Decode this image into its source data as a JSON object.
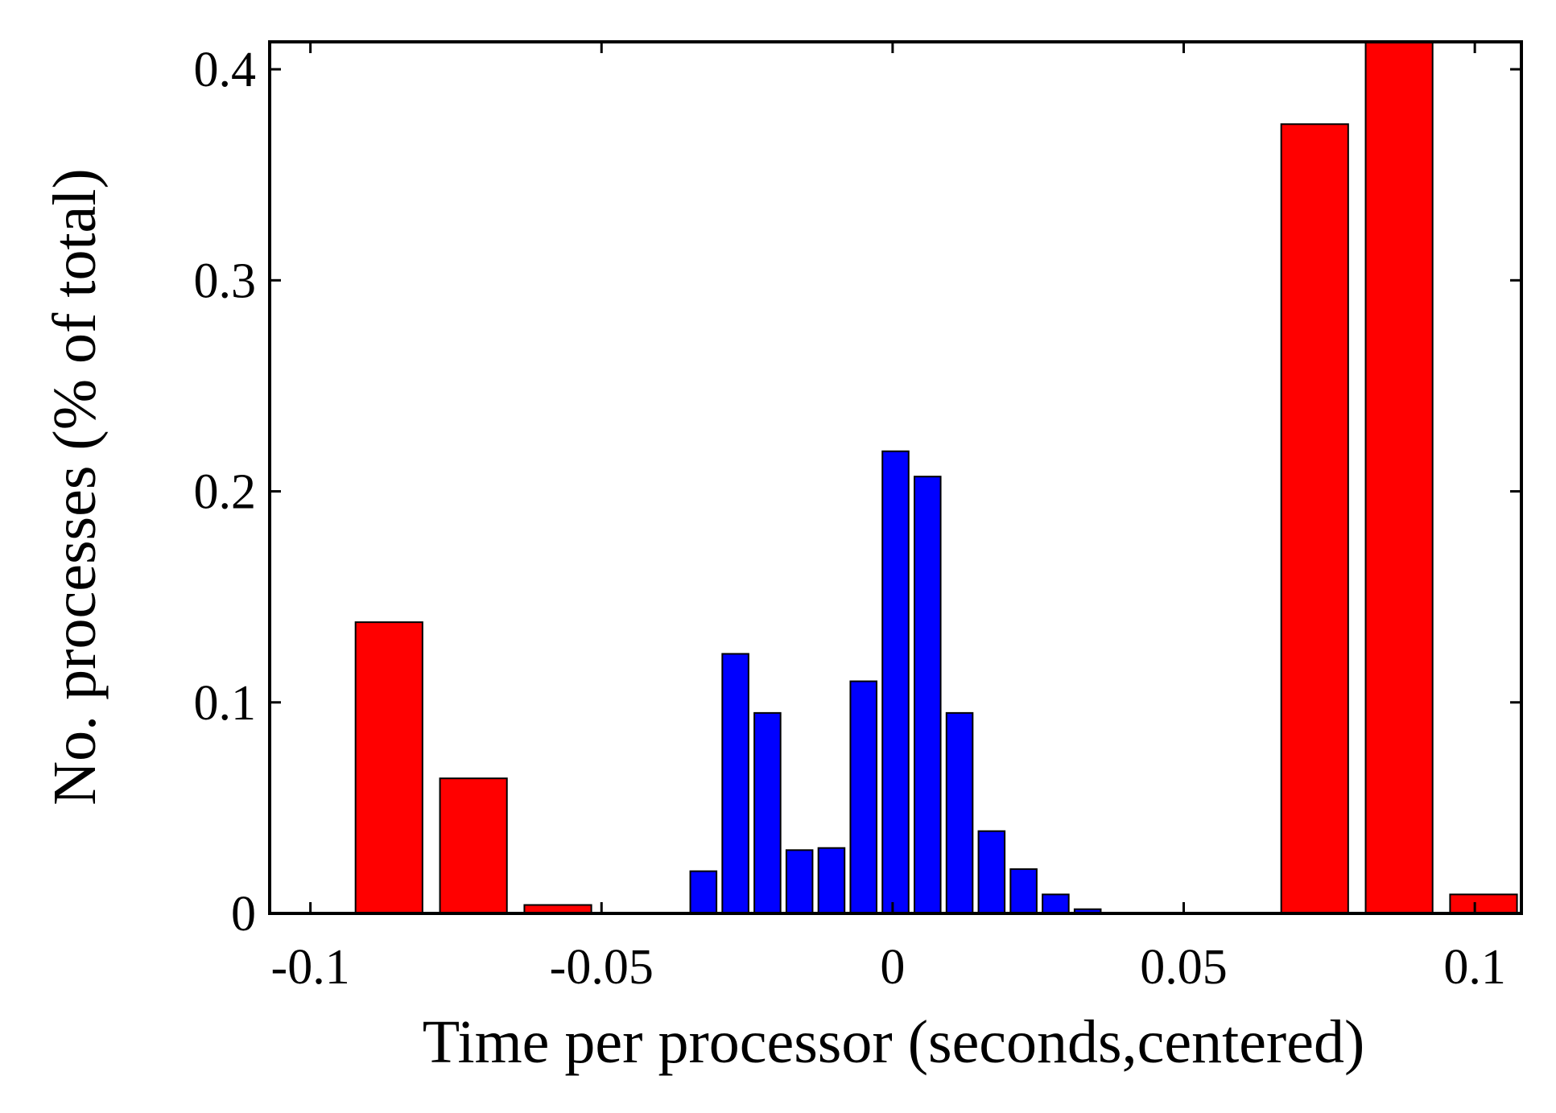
{
  "chart_data": {
    "type": "bar",
    "title": "",
    "xlabel": "Time per processor (seconds,centered)",
    "ylabel": "No. processes (% of total)",
    "xlim": [
      -0.107,
      0.108
    ],
    "ylim": [
      0,
      0.413
    ],
    "xticks": [
      {
        "value": -0.1,
        "label": "-0.1"
      },
      {
        "value": -0.05,
        "label": "-0.05"
      },
      {
        "value": 0,
        "label": "0"
      },
      {
        "value": 0.05,
        "label": "0.05"
      },
      {
        "value": 0.1,
        "label": "0.1"
      }
    ],
    "yticks": [
      {
        "value": 0,
        "label": "0"
      },
      {
        "value": 0.1,
        "label": "0.1"
      },
      {
        "value": 0.2,
        "label": "0.2"
      },
      {
        "value": 0.3,
        "label": "0.3"
      },
      {
        "value": 0.4,
        "label": "0.4"
      }
    ],
    "grid": false,
    "legend": "none",
    "series": [
      {
        "color": "#ff0000",
        "bar_width": 0.0115,
        "x": [
          -0.0865,
          -0.072,
          -0.0575,
          0.0725,
          0.087,
          0.1015
        ],
        "values": [
          0.138,
          0.064,
          0.004,
          0.374,
          0.413,
          0.009
        ]
      },
      {
        "color": "#0000ff",
        "bar_width": 0.0045,
        "x": [
          -0.0325,
          -0.027,
          -0.0215,
          -0.016,
          -0.0105,
          -0.005,
          0.0005,
          0.006,
          0.0115,
          0.017,
          0.0225,
          0.028,
          0.0335
        ],
        "values": [
          0.02,
          0.123,
          0.095,
          0.03,
          0.031,
          0.11,
          0.219,
          0.207,
          0.095,
          0.039,
          0.021,
          0.009,
          0.002
        ]
      }
    ]
  }
}
